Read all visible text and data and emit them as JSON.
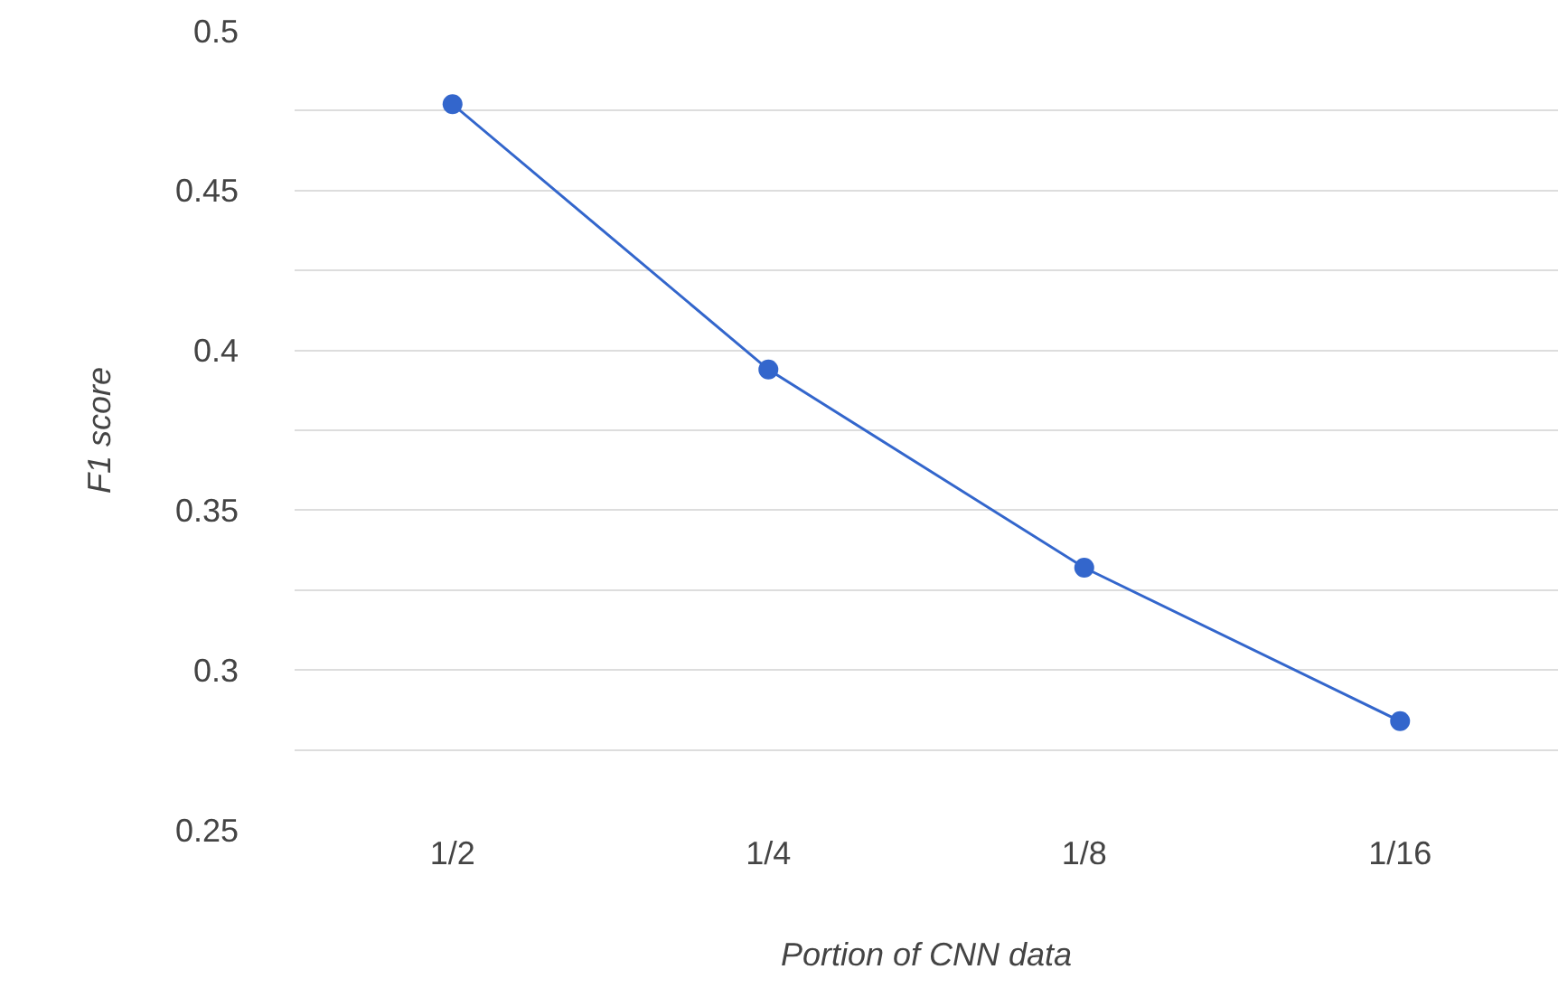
{
  "chart_data": {
    "type": "line",
    "xlabel": "Portion of CNN data",
    "ylabel": "F1 score",
    "categories": [
      "1/2",
      "1/4",
      "1/8",
      "1/16"
    ],
    "series": [
      {
        "color": "#3366cc",
        "values": [
          0.477,
          0.394,
          0.332,
          0.284
        ]
      }
    ],
    "ylim": [
      0.25,
      0.5
    ],
    "yticks": [
      0.25,
      {
        "value": 0.275,
        "label": null
      },
      0.3,
      {
        "value": 0.325,
        "label": null
      },
      0.35,
      {
        "value": 0.375,
        "label": null
      },
      0.4,
      {
        "value": 0.425,
        "label": null
      },
      0.45,
      {
        "value": 0.475,
        "label": null
      },
      0.5
    ],
    "grid": "y",
    "marker": "circle",
    "line_style": "solid"
  }
}
